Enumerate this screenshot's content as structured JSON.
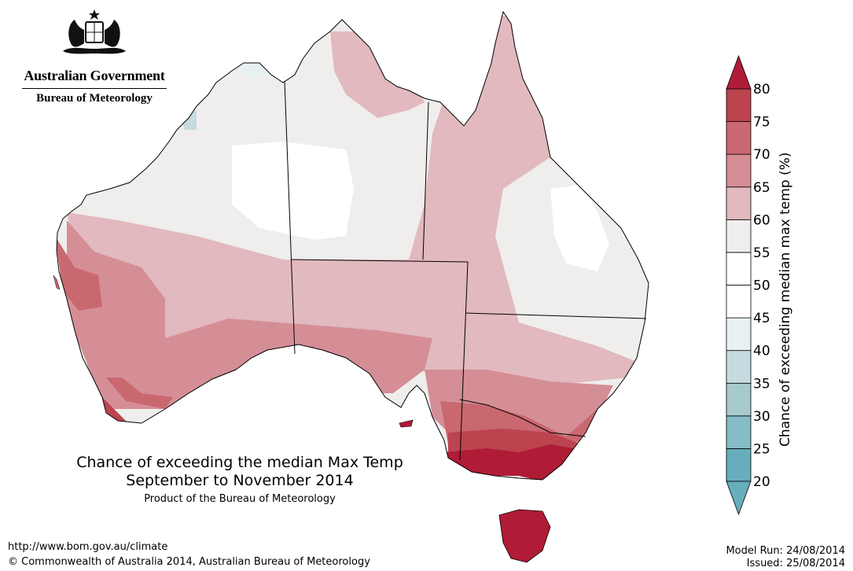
{
  "header": {
    "gov_name": "Australian Government",
    "agency": "Bureau of Meteorology"
  },
  "title_line1": "Chance of exceeding the median Max Temp",
  "title_line2": "September to November 2014",
  "product": "Product of the Bureau of Meteorology",
  "footer": {
    "url": "http://www.bom.gov.au/climate",
    "copyright": "© Commonwealth of Australia 2014, Australian Bureau of Meteorology",
    "model_run": "Model Run: 24/08/2014",
    "issued": "Issued: 25/08/2014"
  },
  "legend": {
    "title": "Chance of exceeding median max temp (%)",
    "ticks": [
      "20",
      "25",
      "30",
      "35",
      "40",
      "45",
      "50",
      "55",
      "60",
      "65",
      "70",
      "75",
      "80"
    ],
    "colors": [
      "#67adbb",
      "#85bcc6",
      "#a6cace",
      "#c5dbdf",
      "#e8f0f2",
      "#ffffff",
      "#ffffff",
      "#efeeec",
      "#e1b9be",
      "#d58e96",
      "#c9686f",
      "#bc444f",
      "#b01b36"
    ]
  },
  "palette": {
    "white": "#ffffff",
    "grey": "#efeeec",
    "p60": "#e1b9be",
    "p65": "#d58e96",
    "p70": "#c9686f",
    "p75": "#bc444f",
    "p80": "#b01b36",
    "b40": "#e8f0f2",
    "b35": "#c5dbdf"
  }
}
